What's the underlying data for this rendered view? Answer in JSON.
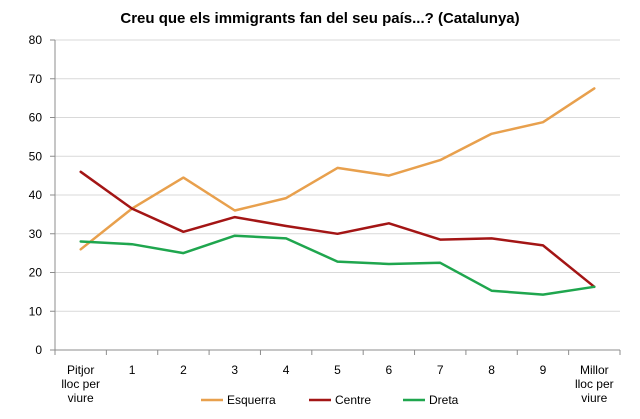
{
  "chart_data": {
    "type": "line",
    "title": "Creu que els immigrants fan del seu país...? (Catalunya)",
    "categories": [
      [
        "Pitjor",
        "lloc per",
        "viure"
      ],
      [
        "1"
      ],
      [
        "2"
      ],
      [
        "3"
      ],
      [
        "4"
      ],
      [
        "5"
      ],
      [
        "6"
      ],
      [
        "7"
      ],
      [
        "8"
      ],
      [
        "9"
      ],
      [
        "Millor",
        "lloc per",
        "viure"
      ]
    ],
    "ylim": [
      0,
      80
    ],
    "yticks": [
      0,
      10,
      20,
      30,
      40,
      50,
      60,
      70,
      80
    ],
    "grid": true,
    "legend": "bottom",
    "series": [
      {
        "name": "Esquerra",
        "color": "#E8A04D",
        "values": [
          26,
          36.5,
          44.5,
          36,
          39.2,
          47,
          45,
          49,
          55.8,
          58.8,
          67.5
        ]
      },
      {
        "name": "Centre",
        "color": "#A31515",
        "values": [
          46,
          36.5,
          30.5,
          34.3,
          32,
          30,
          32.7,
          28.5,
          28.8,
          27,
          16.3
        ]
      },
      {
        "name": "Dreta",
        "color": "#1FA64E",
        "values": [
          28,
          27.3,
          25,
          29.5,
          28.8,
          22.8,
          22.2,
          22.5,
          15.3,
          14.3,
          16.3
        ]
      }
    ]
  }
}
